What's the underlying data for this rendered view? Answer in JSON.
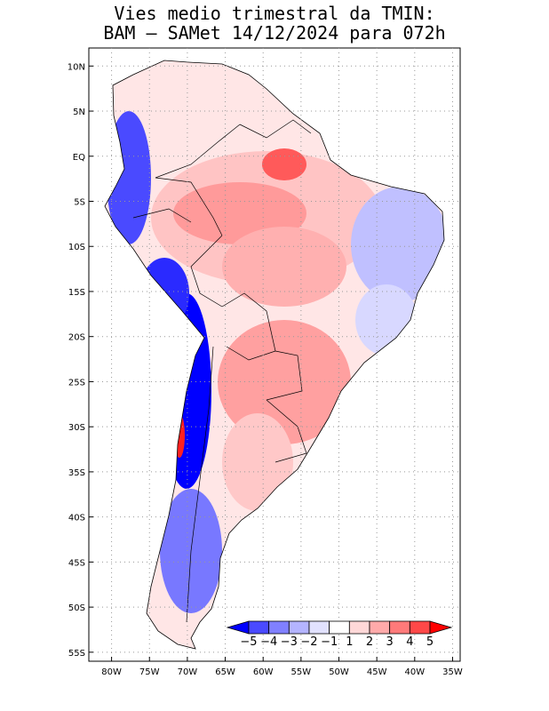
{
  "title_line1": "Vies medio trimestral da TMIN:",
  "title_line2": "BAM – SAMet 14/12/2024  para 072h",
  "map": {
    "lon_range": [
      -83,
      -34
    ],
    "lat_range": [
      -56,
      12
    ],
    "lat_ticks": [
      {
        "lat": 10,
        "label": "10N"
      },
      {
        "lat": 5,
        "label": "5N"
      },
      {
        "lat": 0,
        "label": "EQ"
      },
      {
        "lat": -5,
        "label": "5S"
      },
      {
        "lat": -10,
        "label": "10S"
      },
      {
        "lat": -15,
        "label": "15S"
      },
      {
        "lat": -20,
        "label": "20S"
      },
      {
        "lat": -25,
        "label": "25S"
      },
      {
        "lat": -30,
        "label": "30S"
      },
      {
        "lat": -35,
        "label": "35S"
      },
      {
        "lat": -40,
        "label": "40S"
      },
      {
        "lat": -45,
        "label": "45S"
      },
      {
        "lat": -50,
        "label": "50S"
      },
      {
        "lat": -55,
        "label": "55S"
      }
    ],
    "lon_ticks": [
      {
        "lon": -80,
        "label": "80W"
      },
      {
        "lon": -75,
        "label": "75W"
      },
      {
        "lon": -70,
        "label": "70W"
      },
      {
        "lon": -65,
        "label": "65W"
      },
      {
        "lon": -60,
        "label": "60W"
      },
      {
        "lon": -55,
        "label": "55W"
      },
      {
        "lon": -50,
        "label": "50W"
      },
      {
        "lon": -45,
        "label": "45W"
      },
      {
        "lon": -40,
        "label": "40W"
      },
      {
        "lon": -35,
        "label": "35W"
      }
    ],
    "grid": "dotted"
  },
  "colorbar": {
    "labels": [
      "−5",
      "−4",
      "−3",
      "−2",
      "−1",
      "1",
      "2",
      "3",
      "4",
      "5"
    ],
    "colors": [
      "#0000ff",
      "#4a4aff",
      "#8080ff",
      "#b4b4ff",
      "#e2e2ff",
      "#ffffff",
      "#ffd8d8",
      "#ffaaaa",
      "#ff7a7a",
      "#ff4848",
      "#ff0000"
    ]
  }
}
